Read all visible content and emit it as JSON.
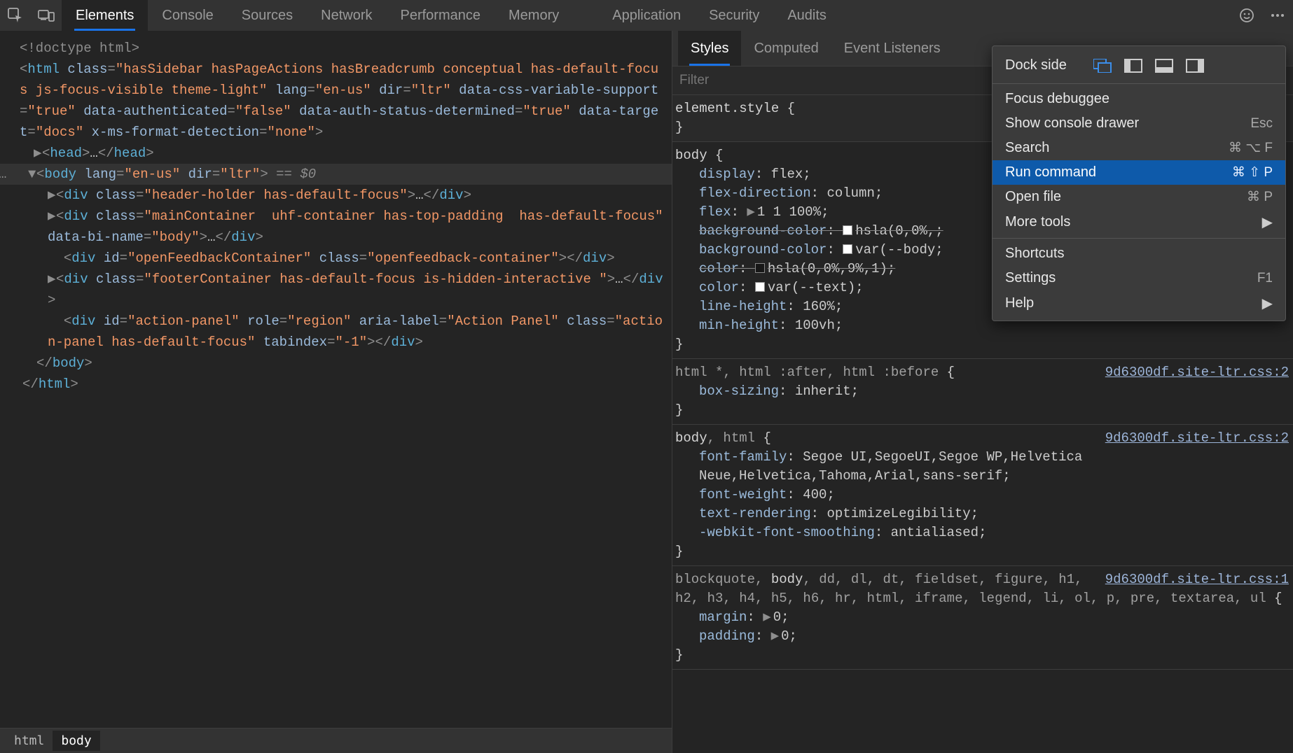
{
  "topTabs": [
    "Elements",
    "Console",
    "Sources",
    "Network",
    "Performance",
    "Memory",
    "Application",
    "Security",
    "Audits"
  ],
  "topTabActive": 0,
  "sidebarTabs": [
    "Styles",
    "Computed",
    "Event Listeners"
  ],
  "sidebarTabActive": 0,
  "filterPlaceholder": "Filter",
  "breadcrumb": [
    "html",
    "body"
  ],
  "breadcrumbActive": 1,
  "dom": {
    "doctype": "<!doctype html>",
    "htmlOpen": {
      "class": "hasSidebar hasPageActions hasBreadcrumb conceptual has-default-focus js-focus-visible theme-light",
      "lang": "en-us",
      "dir": "ltr",
      "data-css-variable-support": "true",
      "data-authenticated": "false",
      "data-auth-status-determined": "true",
      "data-target": "docs",
      "x-ms-format-detection": "none"
    },
    "headCollapsed": true,
    "body": {
      "lang": "en-us",
      "dir": "ltr",
      "eq": "$0"
    },
    "children": [
      {
        "tag": "div",
        "attrs": {
          "class": "header-holder has-default-focus"
        },
        "collapsed": true
      },
      {
        "tag": "div",
        "attrs": {
          "class": "mainContainer  uhf-container has-top-padding  has-default-focus",
          "data-bi-name": "body"
        },
        "collapsed": true
      },
      {
        "tag": "div",
        "attrs": {
          "id": "openFeedbackContainer",
          "class": "openfeedback-container"
        },
        "empty": true
      },
      {
        "tag": "div",
        "attrs": {
          "class": "footerContainer has-default-focus is-hidden-interactive "
        },
        "collapsed": true
      },
      {
        "tag": "div",
        "attrs": {
          "id": "action-panel",
          "role": "region",
          "aria-label": "Action Panel",
          "class": "action-panel has-default-focus",
          "tabindex": "-1"
        },
        "empty": true
      }
    ]
  },
  "styles": {
    "elementStyle": {
      "selector": "element.style",
      "decls": []
    },
    "rules": [
      {
        "selector": "body",
        "highlight": "body",
        "decls": [
          {
            "prop": "display",
            "val": "flex"
          },
          {
            "prop": "flex-direction",
            "val": "column"
          },
          {
            "prop": "flex",
            "val": "1 1 100%",
            "expand": true
          },
          {
            "prop": "background-color",
            "val": "hsla(0,0%,",
            "swatch": "#ffffff",
            "strike": true
          },
          {
            "prop": "background-color",
            "val": "var(--body",
            "swatch": "#ffffff"
          },
          {
            "prop": "color",
            "val": "hsla(0,0%,9%,1)",
            "swatch": "#171717",
            "strike": true
          },
          {
            "prop": "color",
            "val": "var(--text)",
            "swatch": "#ffffff"
          },
          {
            "prop": "line-height",
            "val": "160%"
          },
          {
            "prop": "min-height",
            "val": "100vh"
          }
        ]
      },
      {
        "selector": "html *, html :after, html :before",
        "highlight": "",
        "source": "9d6300df.site-ltr.css:2",
        "decls": [
          {
            "prop": "box-sizing",
            "val": "inherit"
          }
        ]
      },
      {
        "selector": "body, html",
        "highlight": "body",
        "source": "9d6300df.site-ltr.css:2",
        "decls": [
          {
            "prop": "font-family",
            "val": "Segoe UI,SegoeUI,Segoe WP,Helvetica Neue,Helvetica,Tahoma,Arial,sans-serif"
          },
          {
            "prop": "font-weight",
            "val": "400"
          },
          {
            "prop": "text-rendering",
            "val": "optimizeLegibility"
          },
          {
            "prop": "-webkit-font-smoothing",
            "val": "antialiased"
          }
        ]
      },
      {
        "selector": "blockquote, body, dd, dl, dt, fieldset, figure, h1, h2, h3, h4, h5, h6, hr, html, iframe, legend, li, ol, p, pre, textarea, ul",
        "highlight": "body",
        "source": "9d6300df.site-ltr.css:1",
        "decls": [
          {
            "prop": "margin",
            "val": "0",
            "expand": true
          },
          {
            "prop": "padding",
            "val": "0",
            "expand": true
          }
        ]
      }
    ]
  },
  "menu": {
    "dockLabel": "Dock side",
    "items1": [
      {
        "label": "Focus debuggee",
        "shortcut": ""
      },
      {
        "label": "Show console drawer",
        "shortcut": "Esc"
      },
      {
        "label": "Search",
        "shortcut": "⌘ ⌥ F"
      },
      {
        "label": "Run command",
        "shortcut": "⌘ ⇧ P",
        "highlight": true
      },
      {
        "label": "Open file",
        "shortcut": "⌘ P"
      },
      {
        "label": "More tools",
        "shortcut": "",
        "submenu": true
      }
    ],
    "items2": [
      {
        "label": "Shortcuts",
        "shortcut": ""
      },
      {
        "label": "Settings",
        "shortcut": "F1"
      },
      {
        "label": "Help",
        "shortcut": "",
        "submenu": true
      }
    ]
  }
}
